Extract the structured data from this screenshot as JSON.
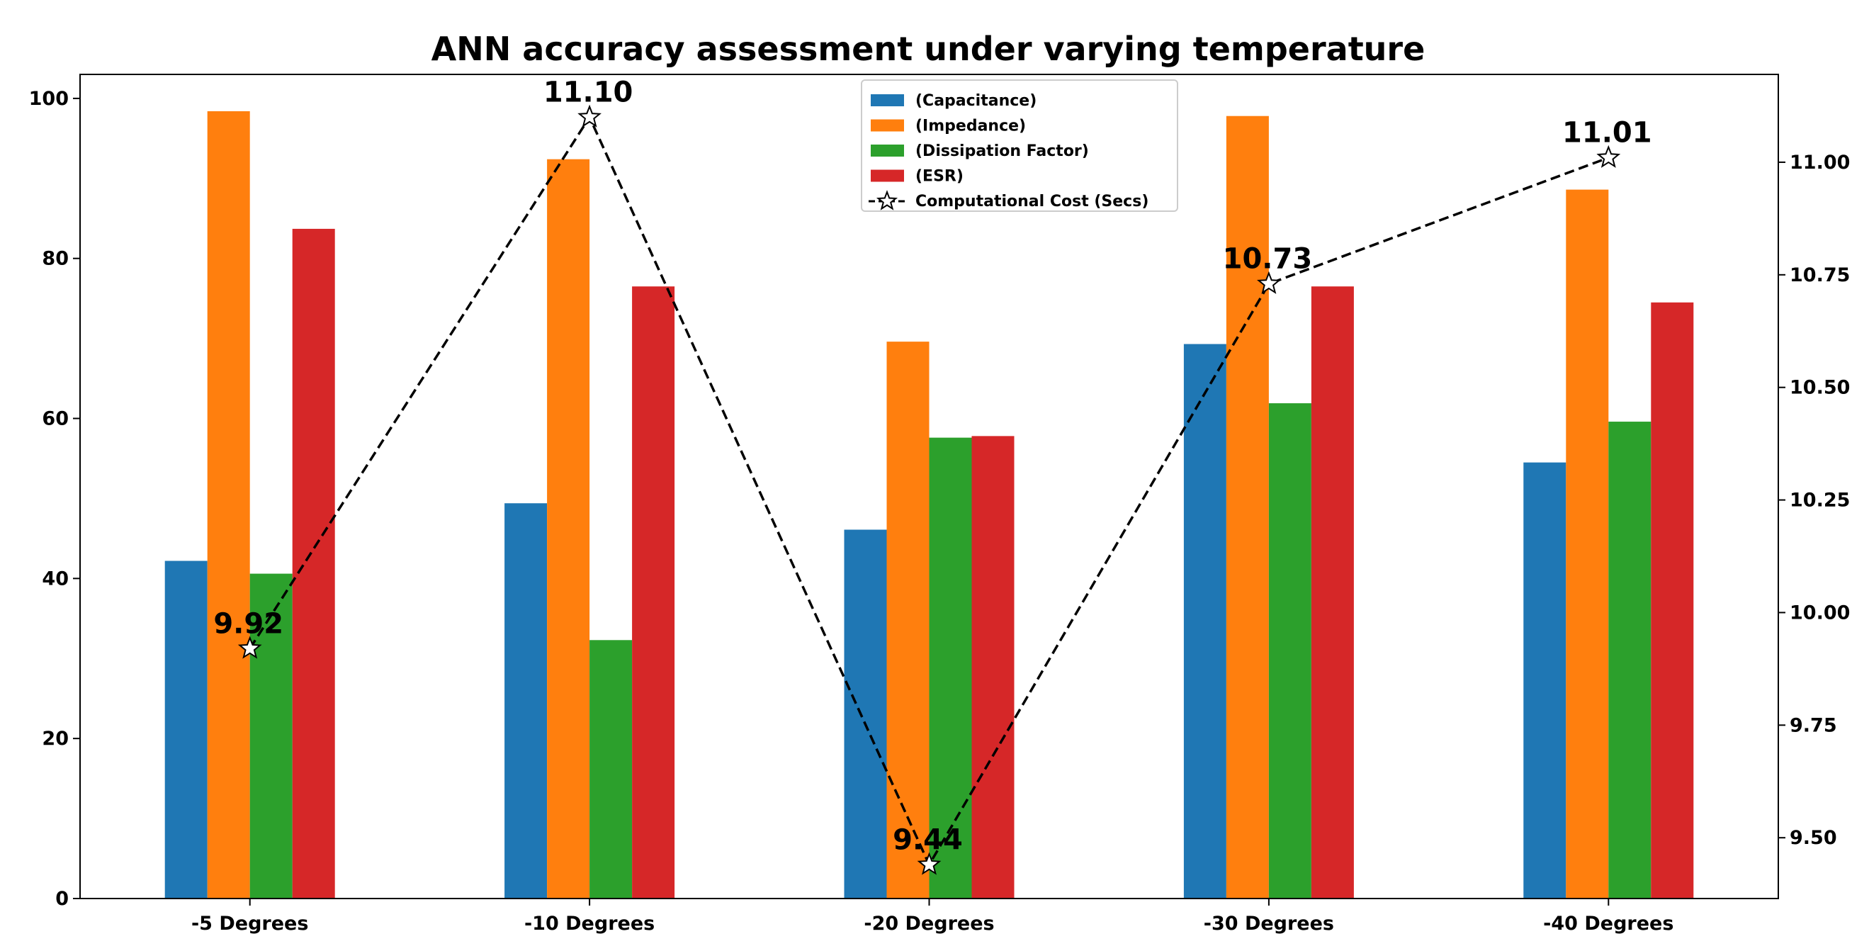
{
  "chart_data": {
    "type": "bar",
    "title": "ANN accuracy assessment under varying temperature",
    "categories": [
      "-5 Degrees",
      "-10 Degrees",
      "-20 Degrees",
      "-30 Degrees",
      "-40 Degrees"
    ],
    "series": [
      {
        "name": "(Capacitance)",
        "color": "#1f77b4",
        "values": [
          42.2,
          49.4,
          46.1,
          69.3,
          54.5
        ]
      },
      {
        "name": "(Impedance)",
        "color": "#ff7f0e",
        "values": [
          98.4,
          92.4,
          69.6,
          97.8,
          88.6
        ]
      },
      {
        "name": "(Dissipation Factor)",
        "color": "#2ca02c",
        "values": [
          40.6,
          32.3,
          57.6,
          61.9,
          59.6
        ]
      },
      {
        "name": "(ESR)",
        "color": "#d62728",
        "values": [
          83.7,
          76.5,
          57.8,
          76.5,
          74.5
        ]
      }
    ],
    "secondary_line": {
      "name": "Computational Cost (Secs)",
      "values": [
        9.92,
        11.1,
        9.44,
        10.73,
        11.01
      ],
      "labels": [
        "9.92",
        "11.10",
        "9.44",
        "10.73",
        "11.01"
      ],
      "color": "#000000",
      "marker": "star",
      "style": "dashed"
    },
    "y_left": {
      "lim": [
        0,
        103
      ],
      "ticks": [
        0,
        20,
        40,
        60,
        80,
        100
      ],
      "tick_labels": [
        "0",
        "20",
        "40",
        "60",
        "80",
        "100"
      ]
    },
    "y_right": {
      "lim": [
        9.365,
        11.195
      ],
      "ticks": [
        9.5,
        9.75,
        10.0,
        10.25,
        10.5,
        10.75,
        11.0
      ],
      "tick_labels": [
        "9.50",
        "9.75",
        "10.00",
        "10.25",
        "10.50",
        "10.75",
        "11.00"
      ]
    },
    "legend_position": "top-center"
  }
}
